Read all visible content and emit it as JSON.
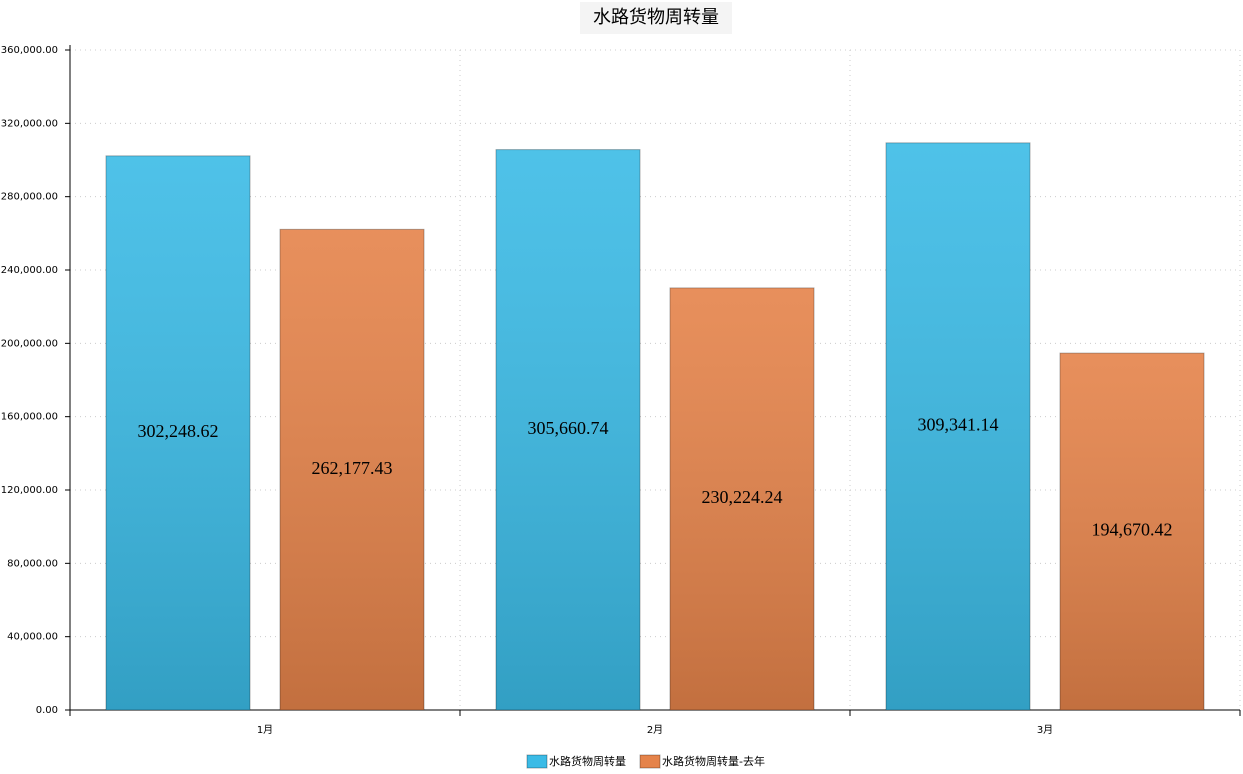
{
  "chart_data": {
    "type": "bar",
    "title": "水路货物周转量",
    "categories": [
      "1月",
      "2月",
      "3月"
    ],
    "series": [
      {
        "name": "水路货物周转量",
        "color": "#3bbbe6",
        "values": [
          302248.62,
          305660.74,
          309341.14
        ],
        "value_labels": [
          "302,248.62",
          "305,660.74",
          "309,341.14"
        ]
      },
      {
        "name": "水路货物周转量-去年",
        "color": "#e5834a",
        "values": [
          262177.43,
          230224.24,
          194670.42
        ],
        "value_labels": [
          "262,177.43",
          "230,224.24",
          "194,670.42"
        ]
      }
    ],
    "ylim": [
      0,
      360000
    ],
    "yticks": [
      {
        "value": 0,
        "label": "0.00"
      },
      {
        "value": 40000,
        "label": "40,000.00"
      },
      {
        "value": 80000,
        "label": "80,000.00"
      },
      {
        "value": 120000,
        "label": "120,000.00"
      },
      {
        "value": 160000,
        "label": "160,000.00"
      },
      {
        "value": 200000,
        "label": "200,000.00"
      },
      {
        "value": 240000,
        "label": "240,000.00"
      },
      {
        "value": 280000,
        "label": "280,000.00"
      },
      {
        "value": 320000,
        "label": "320,000.00"
      },
      {
        "value": 360000,
        "label": "360,000.00"
      }
    ],
    "grid": true
  }
}
